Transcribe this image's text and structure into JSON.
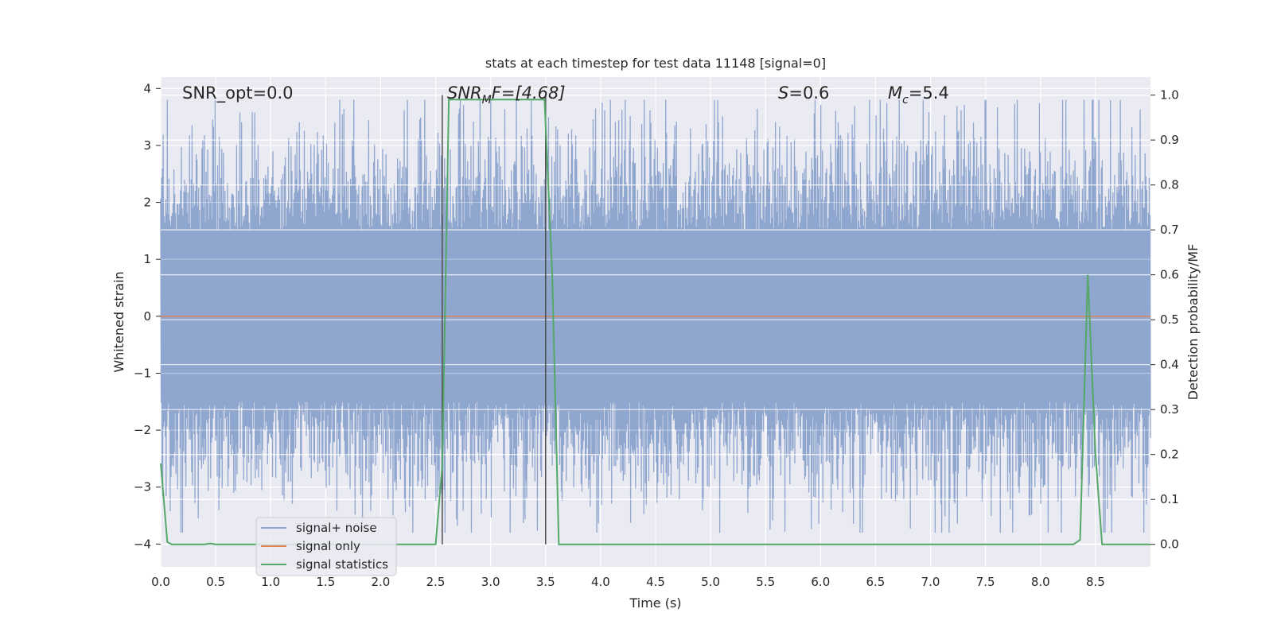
{
  "chart_data": {
    "type": "line",
    "title": "stats at each timestep for test data 11148 [signal=0]",
    "xlabel": "Time (s)",
    "ylabel_left": "Whitened strain",
    "ylabel_right": "Detection probability/MF",
    "xlim": [
      0.0,
      9.0
    ],
    "ylim_left": [
      -4.4,
      4.2
    ],
    "ylim_right": [
      -0.05,
      1.04
    ],
    "x_ticks": [
      "0.0",
      "0.5",
      "1.0",
      "1.5",
      "2.0",
      "2.5",
      "3.0",
      "3.5",
      "4.0",
      "4.5",
      "5.0",
      "5.5",
      "6.0",
      "6.5",
      "7.0",
      "7.5",
      "8.0",
      "8.5"
    ],
    "y_ticks_left": [
      "4",
      "3",
      "2",
      "1",
      "0",
      "−1",
      "−2",
      "−3",
      "−4"
    ],
    "y_ticks_right": [
      "1.0",
      "0.9",
      "0.8",
      "0.7",
      "0.6",
      "0.5",
      "0.4",
      "0.3",
      "0.2",
      "0.1",
      "0.0"
    ],
    "grid": true,
    "legend_position": "lower-left",
    "annotations": {
      "snr_opt": "SNR_opt=0.0",
      "snr_mf_main": "SNR",
      "snr_mf_sub": "M",
      "snr_mf_rest": "F=[4.68]",
      "s_var": "S",
      "s_rest": "=0.6",
      "mc_var": "M",
      "mc_sub": "c",
      "mc_rest": "=5.4"
    },
    "markers_x": [
      2.56,
      3.5
    ],
    "series": [
      {
        "name": "signal+ noise",
        "axis": "left",
        "color": "#8fa6cf",
        "description_range": [
          -3.8,
          3.8
        ]
      },
      {
        "name": "signal only",
        "axis": "left",
        "color": "#dd8452",
        "x": [
          0.0,
          9.0
        ],
        "y": [
          0.0,
          0.0
        ]
      },
      {
        "name": "signal statistics",
        "axis": "right",
        "color": "#55a868",
        "x": [
          0.0,
          0.06,
          0.1,
          0.2,
          0.4,
          0.45,
          0.5,
          1.0,
          1.5,
          2.0,
          2.5,
          2.56,
          2.62,
          2.7,
          3.0,
          3.3,
          3.49,
          3.56,
          3.62,
          3.7,
          4.0,
          5.0,
          6.0,
          7.0,
          8.0,
          8.3,
          8.36,
          8.43,
          8.5,
          8.56,
          8.7,
          9.0
        ],
        "y": [
          0.18,
          0.005,
          0.0,
          0.0,
          0.0,
          0.002,
          0.0,
          0.0,
          0.0,
          0.0,
          0.0,
          0.175,
          0.99,
          0.99,
          0.99,
          0.99,
          0.99,
          0.6,
          0.0,
          0.0,
          0.0,
          0.0,
          0.0,
          0.0,
          0.0,
          0.0,
          0.01,
          0.6,
          0.2,
          0.0,
          0.0,
          0.0
        ]
      }
    ]
  },
  "colors": {
    "axes_bg": "#eaeaf2",
    "grid": "#ffffff",
    "marker_line": "#4d4d4d"
  }
}
